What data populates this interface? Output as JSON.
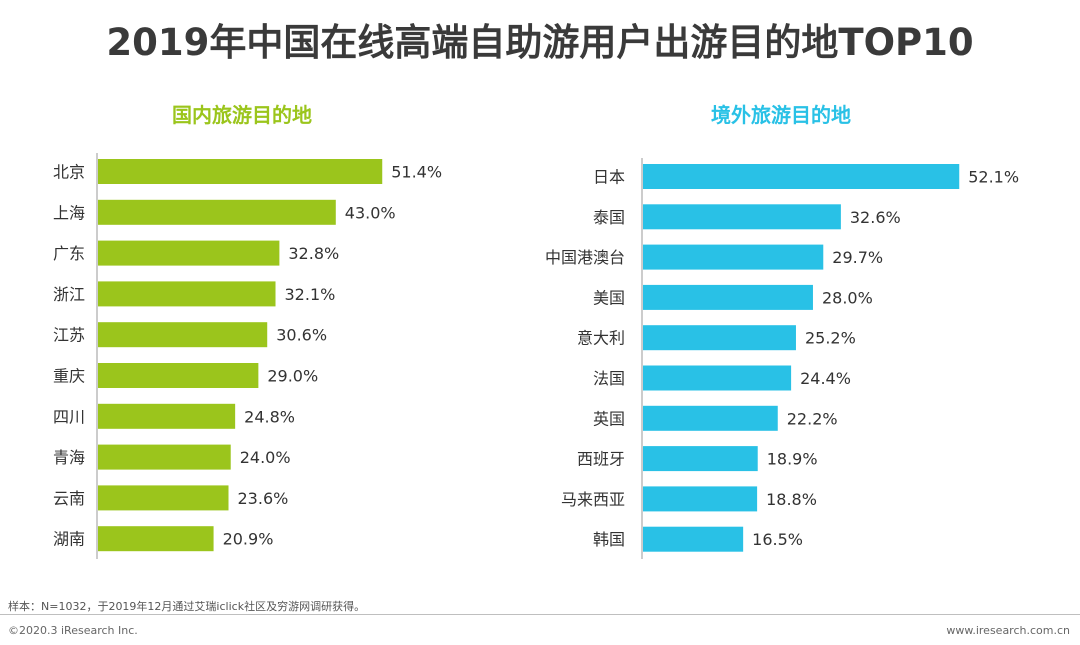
{
  "title": "2019年中国在线高端自助游用户出游目的地TOP10",
  "footnote": "样本：N=1032，于2019年12月通过艾瑞iclick社区及穷游网调研获得。",
  "copyright": "©2020.3 iResearch Inc.",
  "website": "www.iresearch.com.cn",
  "colors": {
    "domestic": "#9bc51c",
    "overseas": "#29c1e6",
    "text": "#333333"
  },
  "chart_data": [
    {
      "type": "bar",
      "orientation": "horizontal",
      "title": "国内旅游目的地",
      "categories": [
        "北京",
        "上海",
        "广东",
        "浙江",
        "江苏",
        "重庆",
        "四川",
        "青海",
        "云南",
        "湖南"
      ],
      "values": [
        51.4,
        43.0,
        32.8,
        32.1,
        30.6,
        29.0,
        24.8,
        24.0,
        23.6,
        20.9
      ],
      "labels": [
        "51.4%",
        "43.0%",
        "32.8%",
        "32.1%",
        "30.6%",
        "29.0%",
        "24.8%",
        "24.0%",
        "23.6%",
        "20.9%"
      ],
      "unit": "%",
      "xlim": [
        0,
        60
      ],
      "grid": false,
      "color": "#9bc51c"
    },
    {
      "type": "bar",
      "orientation": "horizontal",
      "title": "境外旅游目的地",
      "categories": [
        "日本",
        "泰国",
        "中国港澳台",
        "美国",
        "意大利",
        "法国",
        "英国",
        "西班牙",
        "马来西亚",
        "韩国"
      ],
      "values": [
        52.1,
        32.6,
        29.7,
        28.0,
        25.2,
        24.4,
        22.2,
        18.9,
        18.8,
        16.5
      ],
      "labels": [
        "52.1%",
        "32.6%",
        "29.7%",
        "28.0%",
        "25.2%",
        "24.4%",
        "22.2%",
        "18.9%",
        "18.8%",
        "16.5%"
      ],
      "unit": "%",
      "xlim": [
        0,
        60
      ],
      "grid": false,
      "color": "#29c1e6"
    }
  ]
}
